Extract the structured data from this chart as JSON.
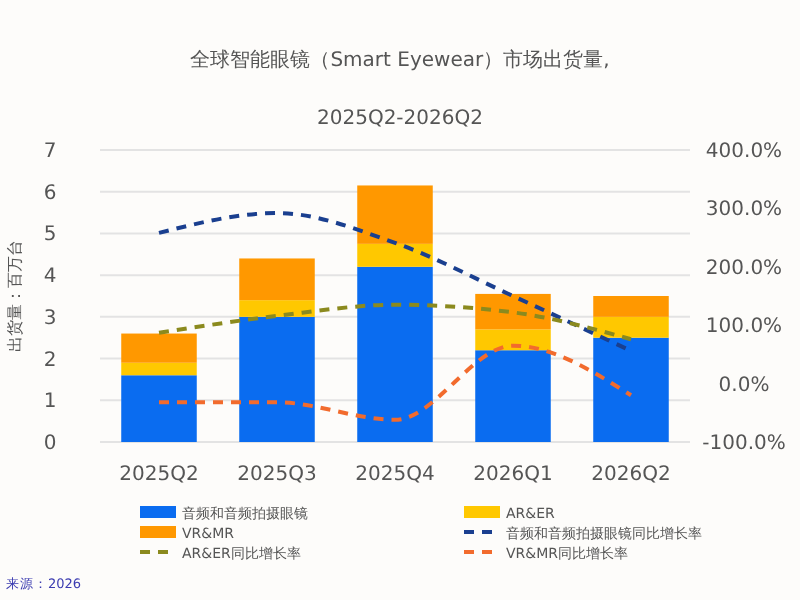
{
  "chart_data": {
    "type": "bar",
    "stacked": true,
    "title": "全球智能眼镜（Smart Eyewear）市场出货量,",
    "subtitle": "2025Q2-2026Q2",
    "ylabel": "出货量：百万台",
    "categories": [
      "2025Q2",
      "2025Q3",
      "2025Q4",
      "2026Q1",
      "2026Q2"
    ],
    "series": [
      {
        "name": "音频和音频拍摄眼镜",
        "color": "#0a6cf0",
        "values": [
          1.6,
          3.0,
          4.2,
          2.2,
          2.5
        ]
      },
      {
        "name": "AR&ER",
        "color": "#ffc800",
        "values": [
          0.3,
          0.4,
          0.55,
          0.5,
          0.5
        ]
      },
      {
        "name": "VR&MR",
        "color": "#ff9800",
        "values": [
          0.7,
          1.0,
          1.4,
          0.85,
          0.5
        ]
      },
      {
        "name": "音频和音频拍摄眼镜同比增长率",
        "type": "line",
        "axis": "y2",
        "line_style": "dashed",
        "color": "#1a3f8f",
        "values": [
          258,
          292,
          241,
          150,
          56
        ]
      },
      {
        "name": "AR&ER同比增长率",
        "type": "line",
        "axis": "y2",
        "line_style": "dashed",
        "color": "#8b8a1e",
        "values": [
          87,
          116,
          135,
          122,
          76
        ]
      },
      {
        "name": "VR&MR同比增长率",
        "type": "line",
        "axis": "y2",
        "line_style": "dashed",
        "color": "#f26b2d",
        "values": [
          -32,
          -32,
          -62,
          65,
          -20
        ]
      }
    ],
    "ylim": [
      0,
      7
    ],
    "yticks": [
      0,
      1,
      2,
      3,
      4,
      5,
      6,
      7
    ],
    "y2lim": [
      -100,
      400
    ],
    "y2ticks": [
      {
        "value": -100,
        "label": "-100.0%"
      },
      {
        "value": 0,
        "label": "0.0%"
      },
      {
        "value": 100,
        "label": "100.0%"
      },
      {
        "value": 200,
        "label": "200.0%"
      },
      {
        "value": 300,
        "label": "300.0%"
      },
      {
        "value": 400,
        "label": "400.0%"
      }
    ],
    "grid": "y",
    "legend": "bottom",
    "annotations": [
      "来源：2026"
    ]
  }
}
